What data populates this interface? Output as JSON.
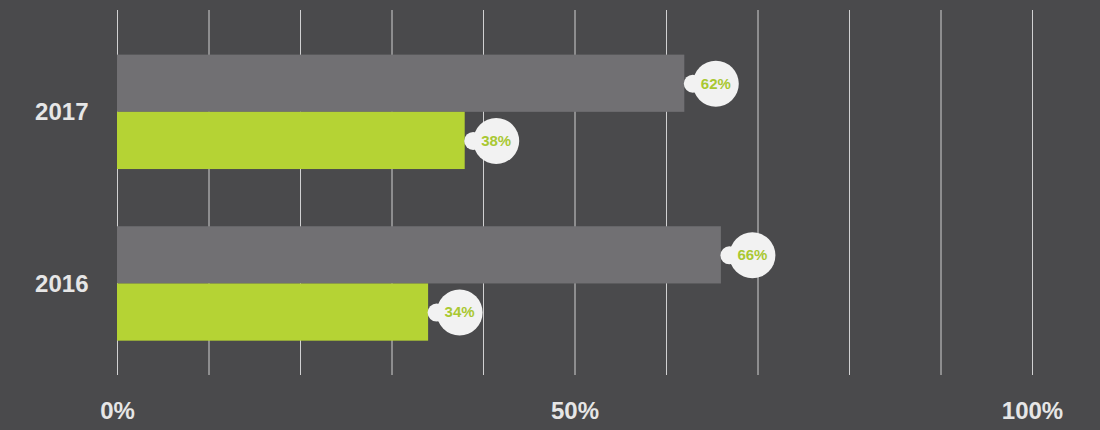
{
  "chart_data": {
    "type": "bar",
    "orientation": "horizontal",
    "categories": [
      "2017",
      "2016"
    ],
    "series": [
      {
        "color": "#717073",
        "values": [
          62,
          66
        ],
        "value_labels": [
          "62%",
          "66%"
        ]
      },
      {
        "color": "#b5d334",
        "values": [
          38,
          34
        ],
        "value_labels": [
          "38%",
          "34%"
        ]
      }
    ],
    "xlim": [
      0,
      100
    ],
    "xticks": [
      {
        "value": 0,
        "label": "0%"
      },
      {
        "value": 10,
        "label": null
      },
      {
        "value": 20,
        "label": null
      },
      {
        "value": 30,
        "label": null
      },
      {
        "value": 40,
        "label": null
      },
      {
        "value": 50,
        "label": "50%"
      },
      {
        "value": 60,
        "label": null
      },
      {
        "value": 70,
        "label": null
      },
      {
        "value": 80,
        "label": null
      },
      {
        "value": 90,
        "label": null
      },
      {
        "value": 100,
        "label": "100%"
      }
    ],
    "grid": true,
    "data_labels": true
  }
}
